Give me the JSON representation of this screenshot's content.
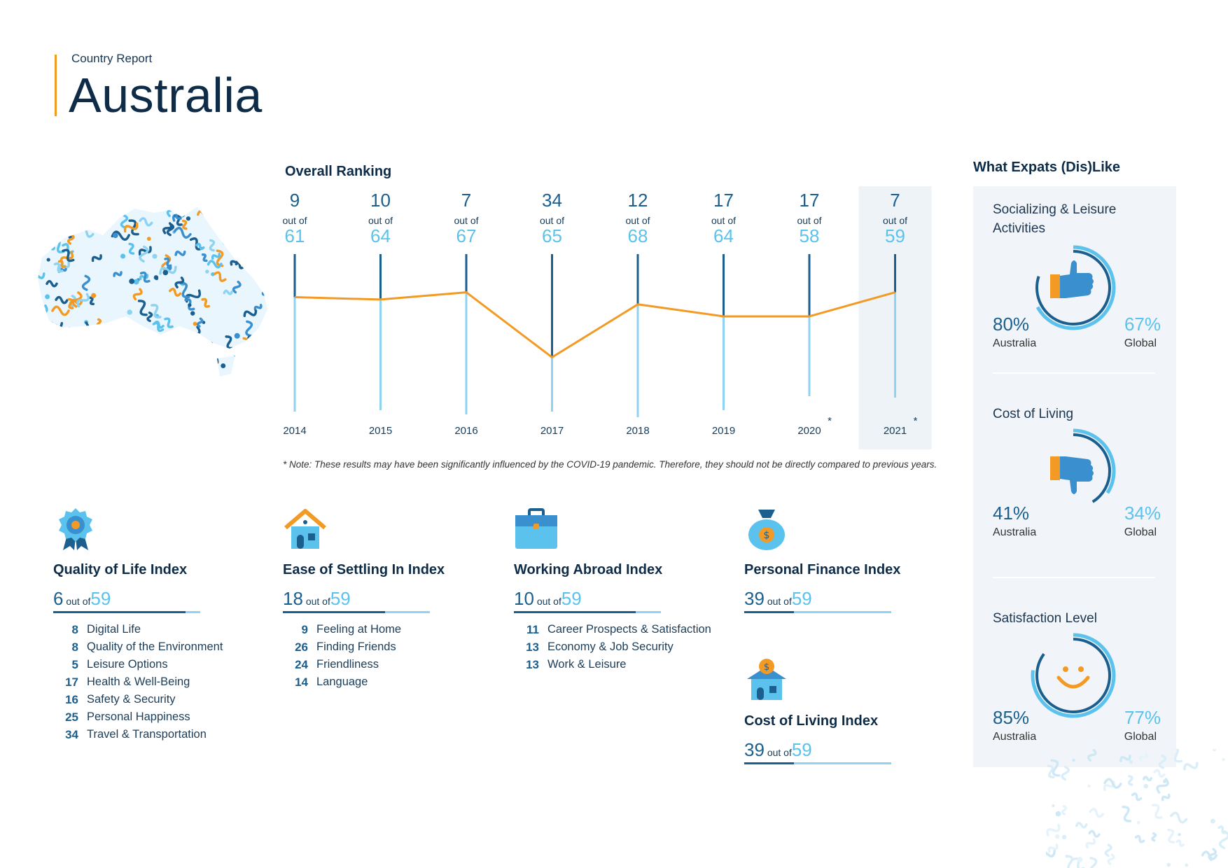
{
  "header": {
    "kicker": "Country Report",
    "title": "Australia"
  },
  "overall_ranking": {
    "heading": "Overall Ranking",
    "out_of_label": "out of",
    "note": "* Note: These results may have been significantly influenced by the COVID-19 pandemic. Therefore, they should not be directly compared to previous years.",
    "colors": {
      "line": "#f39a25",
      "dark": "#1b5f8f",
      "light": "#8fd3f2",
      "highlight": "#eef3f7"
    }
  },
  "chart_data": {
    "type": "line",
    "title": "Overall Ranking",
    "x": [
      "2014",
      "2015",
      "2016",
      "2017",
      "2018",
      "2019",
      "2020",
      "2021"
    ],
    "x_markers": [
      "",
      "",
      "",
      "",
      "",
      "",
      "*",
      "*"
    ],
    "series": [
      {
        "values": [
          9,
          10,
          7,
          34,
          12,
          17,
          17,
          7
        ]
      }
    ],
    "totals": [
      61,
      64,
      67,
      65,
      68,
      64,
      58,
      59
    ],
    "highlighted": "2021",
    "y_inverted": true
  },
  "indices": [
    {
      "title": "Quality of Life Index",
      "icon": "ribbon-award-icon",
      "rank": "6",
      "out_of": "out of",
      "total": "59",
      "rank_num": 6,
      "total_num": 59,
      "subs": [
        {
          "rank": "8",
          "label": "Digital Life"
        },
        {
          "rank": "8",
          "label": "Quality of the Environment"
        },
        {
          "rank": "5",
          "label": "Leisure Options"
        },
        {
          "rank": "17",
          "label": "Health & Well-Being"
        },
        {
          "rank": "16",
          "label": "Safety & Security"
        },
        {
          "rank": "25",
          "label": "Personal Happiness"
        },
        {
          "rank": "34",
          "label": "Travel & Transportation"
        }
      ]
    },
    {
      "title": "Ease of Settling In Index",
      "icon": "house-icon",
      "rank": "18",
      "out_of": "out of",
      "total": "59",
      "rank_num": 18,
      "total_num": 59,
      "subs": [
        {
          "rank": "9",
          "label": "Feeling at Home"
        },
        {
          "rank": "26",
          "label": "Finding Friends"
        },
        {
          "rank": "24",
          "label": "Friendliness"
        },
        {
          "rank": "14",
          "label": "Language"
        }
      ]
    },
    {
      "title": "Working Abroad Index",
      "icon": "briefcase-icon",
      "rank": "10",
      "out_of": "out of",
      "total": "59",
      "rank_num": 10,
      "total_num": 59,
      "subs": [
        {
          "rank": "11",
          "label": "Career Prospects & Satisfaction"
        },
        {
          "rank": "13",
          "label": "Economy & Job Security"
        },
        {
          "rank": "13",
          "label": "Work & Leisure"
        }
      ]
    },
    {
      "title": "Personal Finance Index",
      "icon": "money-bag-icon",
      "rank": "39",
      "out_of": "out of",
      "total": "59",
      "rank_num": 39,
      "total_num": 59,
      "subs": []
    },
    {
      "title": "Cost of Living Index",
      "icon": "house-coin-icon",
      "rank": "39",
      "out_of": "out of",
      "total": "59",
      "rank_num": 39,
      "total_num": 59,
      "subs": []
    }
  ],
  "likes": {
    "heading": "What Expats (Dis)Like",
    "items": [
      {
        "label": "Socializing & Leisure Activities",
        "icon": "thumbs-up-icon",
        "australia_pct": "80%",
        "global_pct": "67%",
        "australia_label": "Australia",
        "global_label": "Global",
        "australia_frac": 0.8,
        "global_frac": 0.67
      },
      {
        "label": "Cost of Living",
        "icon": "thumbs-down-icon",
        "australia_pct": "41%",
        "global_pct": "34%",
        "australia_label": "Australia",
        "global_label": "Global",
        "australia_frac": 0.41,
        "global_frac": 0.34
      },
      {
        "label": "Satisfaction Level",
        "icon": "smiley-icon",
        "australia_pct": "85%",
        "global_pct": "77%",
        "australia_label": "Australia",
        "global_label": "Global",
        "australia_frac": 0.85,
        "global_frac": 0.77
      }
    ]
  }
}
